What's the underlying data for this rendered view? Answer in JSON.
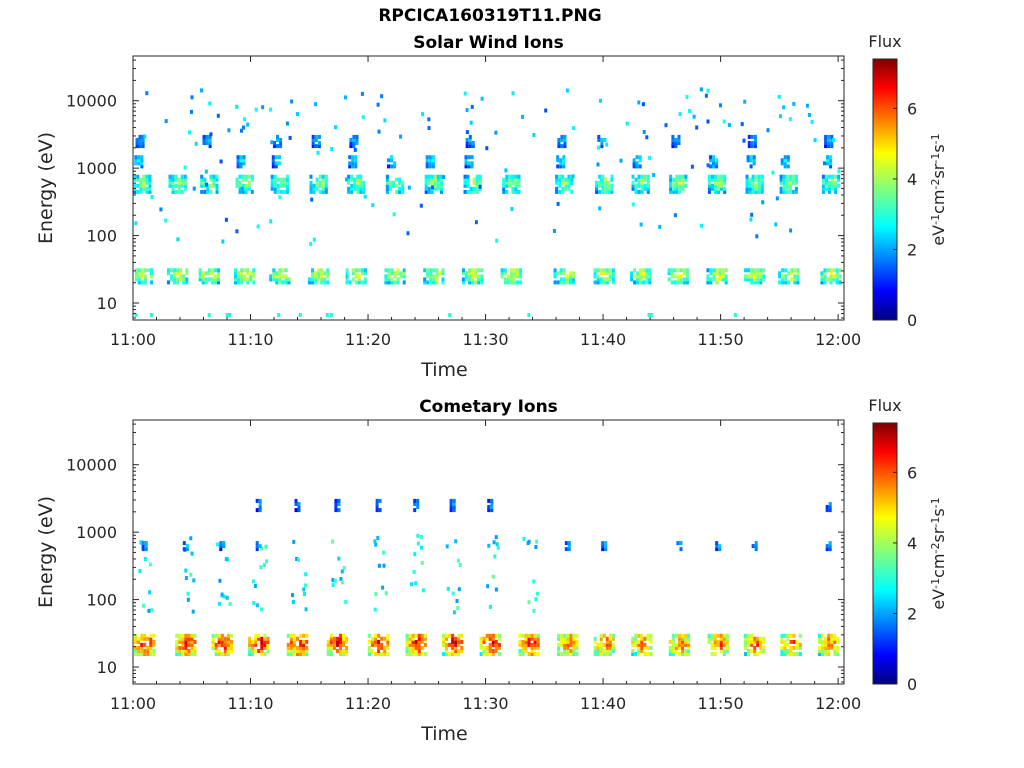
{
  "figure": {
    "filename_title": "RPCICA160319T11.PNG"
  },
  "chart_data": [
    {
      "type": "heatmap",
      "title": "Solar Wind Ions",
      "xlabel": "Time",
      "ylabel": "Energy (eV)",
      "x_ticks": [
        "11:00",
        "11:10",
        "11:20",
        "11:30",
        "11:40",
        "11:50",
        "12:00"
      ],
      "x_range_minutes": [
        0,
        60.5
      ],
      "y_scale": "log",
      "y_ticks": [
        10,
        100,
        1000,
        10000
      ],
      "y_tick_labels": [
        "10",
        "100",
        "1000",
        "10000"
      ],
      "y_range": [
        5.6,
        46000
      ],
      "colorbar": {
        "title": "Flux",
        "unit_base": "eV",
        "unit_sup": [
          "-1",
          "-2",
          "-1",
          "-1"
        ],
        "unit_parts": [
          "cm",
          "sr",
          "s"
        ],
        "ticks": [
          0,
          2,
          4,
          6
        ],
        "tick_labels": [
          "0",
          "2",
          "4",
          "6"
        ],
        "range": [
          0,
          7.4
        ]
      },
      "colormap": "jet",
      "bursts_energy_ev": [
        650,
        1400,
        2800,
        28
      ],
      "burst_times_minutes": [
        0.8,
        3.8,
        6.5,
        9.5,
        12.5,
        15.8,
        19.0,
        22.3,
        25.6,
        28.9,
        32.2,
        36.7,
        40.1,
        43.2,
        46.4,
        49.7,
        52.9,
        55.8,
        59.4
      ],
      "burst_flux": {
        "high_energy_band": 3.0,
        "low_energy_band": 4.0
      }
    },
    {
      "type": "heatmap",
      "title": "Cometary Ions",
      "xlabel": "Time",
      "ylabel": "Energy (eV)",
      "x_ticks": [
        "11:00",
        "11:10",
        "11:20",
        "11:30",
        "11:40",
        "11:50",
        "12:00"
      ],
      "x_range_minutes": [
        0,
        60.5
      ],
      "y_scale": "log",
      "y_ticks": [
        10,
        100,
        1000,
        10000
      ],
      "y_tick_labels": [
        "10",
        "100",
        "1000",
        "10000"
      ],
      "y_range": [
        5.6,
        46000
      ],
      "colorbar": {
        "title": "Flux",
        "unit_base": "eV",
        "unit_sup": [
          "-1",
          "-2",
          "-1",
          "-1"
        ],
        "unit_parts": [
          "cm",
          "sr",
          "s"
        ],
        "ticks": [
          0,
          2,
          4,
          6
        ],
        "tick_labels": [
          "0",
          "2",
          "4",
          "6"
        ],
        "range": [
          0,
          7.4
        ]
      },
      "colormap": "jet",
      "bursts_energy_ev": [
        24,
        2800,
        700,
        200
      ],
      "burst_times_minutes": [
        1.0,
        4.5,
        7.6,
        10.7,
        14.0,
        17.4,
        20.9,
        24.1,
        27.2,
        30.4,
        33.7,
        37.0,
        40.1,
        43.3,
        46.5,
        49.8,
        52.9,
        56.0,
        59.2
      ],
      "burst_flux": {
        "low_energy_band_early": 6.2,
        "low_energy_band_late": 5.6
      }
    }
  ]
}
